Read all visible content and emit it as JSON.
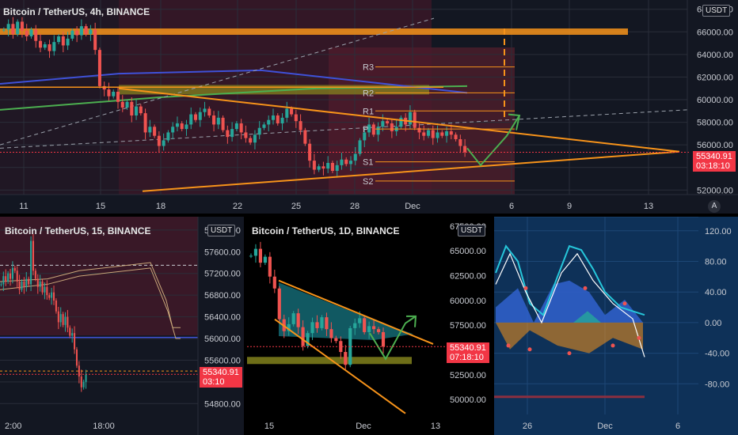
{
  "colors": {
    "up": "#26a69a",
    "down": "#ef5350",
    "orange": "#f7931a",
    "blue_line": "#3f51d8",
    "green_line": "#4caf50",
    "dots": "#3b5bdb",
    "tag": "#f23645",
    "olive": "#8a8a1e",
    "cyan": "#26c6da"
  },
  "panels": {
    "main": {
      "title": "Bitcoin / TetherUS, 4h, BINANCE",
      "currency_label": "USDT",
      "price_label": "55340.91",
      "countdown": "03:18:10",
      "y_ticks": [
        "68000.00",
        "66000.00",
        "64000.00",
        "62000.00",
        "60000.00",
        "58000.00",
        "56000.00",
        "54000.00",
        "52000.00"
      ],
      "x_ticks": [
        "11",
        "15",
        "18",
        "22",
        "25",
        "28",
        "Dec",
        "6",
        "9",
        "13"
      ],
      "pivot_labels": [
        "R3",
        "R2",
        "R1",
        "P",
        "S1",
        "S2"
      ],
      "auto_button": "A"
    },
    "p15": {
      "title": "Bitcoin / TetherUS, 15, BINANCE",
      "currency_label": "USDT",
      "price_label": "55340.91",
      "countdown": "03:10",
      "y_ticks": [
        "58000.00",
        "57600.00",
        "57200.00",
        "56800.00",
        "56400.00",
        "56000.00",
        "55600.00",
        "55200.00",
        "54800.00"
      ],
      "x_ticks": [
        "2:00",
        "18:00"
      ]
    },
    "daily": {
      "title": "Bitcoin / TetherUS, 1D, BINANCE",
      "currency_label": "USDT",
      "price_label": "55340.91",
      "countdown": "07:18:10",
      "y_ticks": [
        "67500.00",
        "65000.00",
        "62500.00",
        "60000.00",
        "57500.00",
        "55000.00",
        "52500.00",
        "50000.00"
      ],
      "x_ticks": [
        "15",
        "Dec",
        "13"
      ]
    },
    "osc": {
      "y_ticks": [
        "120.00",
        "80.00",
        "40.00",
        "0.00",
        "-40.00",
        "-80.00"
      ],
      "x_ticks": [
        "26",
        "Dec",
        "6"
      ]
    }
  },
  "chart_data": [
    {
      "type": "candlestick",
      "title": "Bitcoin / TetherUS, 4h, BINANCE",
      "ylim": [
        51600,
        68400
      ],
      "last_price": 55340.91,
      "pivots": {
        "R3": 62900,
        "R2": 60600,
        "R1": 59000,
        "P": 57400,
        "S1": 54500,
        "S2": 52800
      },
      "values": [
        66200,
        66700,
        65800,
        66900,
        66100,
        65600,
        66200,
        65200,
        64600,
        64900,
        64300,
        65100,
        65600,
        64800,
        65400,
        66100,
        65700,
        66500,
        65800,
        66200,
        64400,
        61200,
        60900,
        60300,
        60700,
        59800,
        59300,
        59800,
        58600,
        59400,
        58800,
        57100,
        57600,
        56800,
        55900,
        56400,
        57100,
        57600,
        57900,
        57400,
        57800,
        58700,
        58200,
        58900,
        59200,
        58600,
        57800,
        58400,
        57300,
        56700,
        57400,
        57900,
        57100,
        56600,
        56200,
        56900,
        57500,
        57800,
        58200,
        58600,
        57900,
        58400,
        59200,
        58700,
        58100,
        57300,
        56100,
        54600,
        53800,
        54100,
        53900,
        54400,
        53700,
        54200,
        54700,
        54300,
        54600,
        55200,
        56400,
        57100,
        57800,
        56900,
        57600,
        58100,
        57900,
        57200,
        57600,
        58400,
        57800,
        58900,
        57500,
        57100,
        56800,
        57300,
        56600,
        57100,
        56800,
        57200,
        56900,
        56500,
        55900,
        55340
      ]
    },
    {
      "type": "candlestick",
      "title": "Bitcoin / TetherUS, 15, BINANCE",
      "ylim": [
        54600,
        58100
      ],
      "last_price": 55340.91,
      "values": [
        57000,
        57150,
        57050,
        57200,
        57100,
        57300,
        57250,
        57050,
        56900,
        57050,
        56950,
        57100,
        57000,
        57800,
        57250,
        57100,
        56950,
        57050,
        56850,
        56950,
        56800,
        56750,
        56850,
        56700,
        56500,
        56300,
        56450,
        56250,
        56400,
        56200,
        56050,
        56100,
        55800,
        55500,
        55300,
        55100,
        55200,
        55340
      ]
    },
    {
      "type": "candlestick",
      "title": "Bitcoin / TetherUS, 1D, BINANCE",
      "ylim": [
        48500,
        67800
      ],
      "last_price": 55340.91,
      "values": [
        64500,
        65200,
        63800,
        64400,
        62400,
        61200,
        58100,
        56900,
        57600,
        58700,
        57300,
        55400,
        56700,
        57800,
        57200,
        58300,
        57100,
        56200,
        55900,
        54800,
        53500,
        57200,
        57700,
        58200,
        56800,
        57400,
        57100,
        56800,
        55340
      ]
    }
  ]
}
